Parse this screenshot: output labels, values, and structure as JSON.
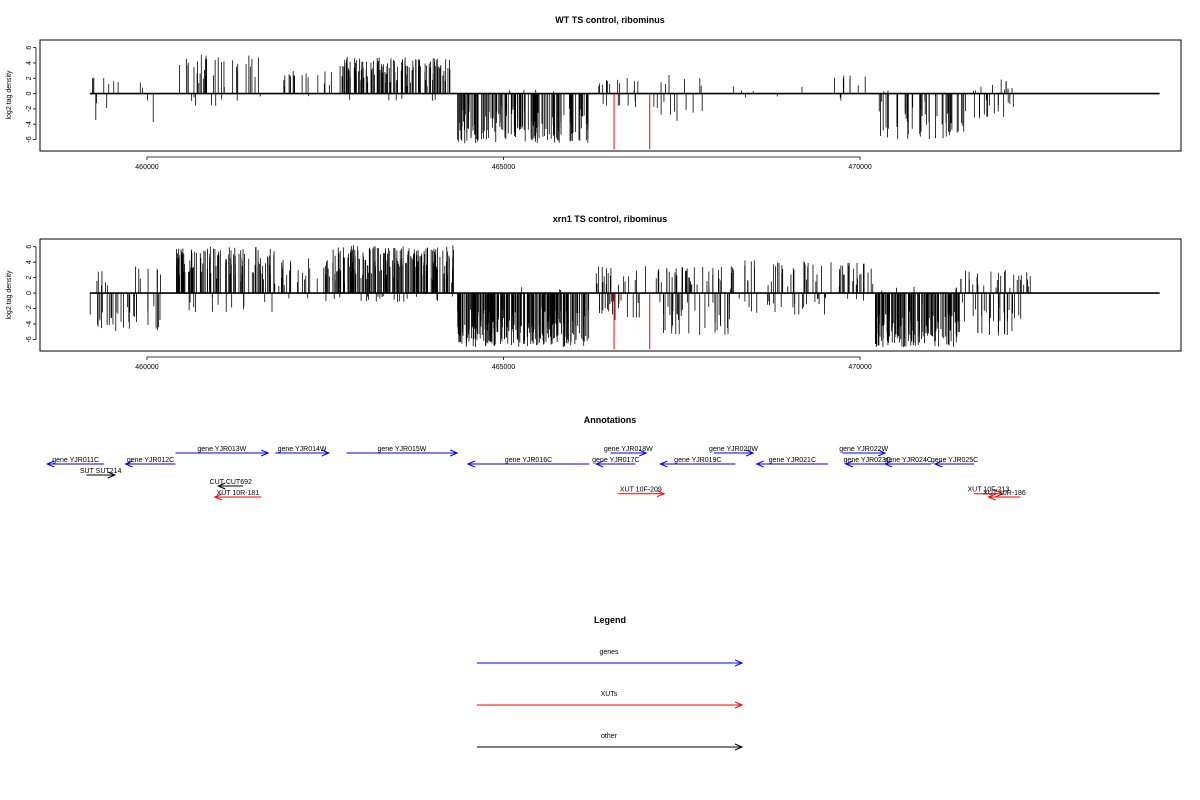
{
  "chart_data": [
    {
      "type": "bar",
      "title": "WT TS control, ribominus",
      "ylabel": "log2 tag density",
      "xlim": [
        458500,
        474500
      ],
      "ylim": [
        -7.5,
        7
      ],
      "x_ticks": [
        460000,
        465000,
        470000
      ],
      "x_tick_labels": [
        "460000",
        "465000",
        "470000"
      ],
      "y_ticks": [
        -6,
        -4,
        -2,
        0,
        2,
        4,
        6
      ],
      "y_tick_labels": [
        "-6",
        "-4",
        "-2",
        "0",
        "2",
        "4",
        "6"
      ],
      "baseline_x_range": [
        459200,
        474200
      ],
      "marker_color": "#ff0000",
      "markers": [
        {
          "x": 466550,
          "y": -7.3
        },
        {
          "x": 467050,
          "y": -7.3
        }
      ],
      "regions": [
        {
          "x": [
            459200,
            460300
          ],
          "n": 14,
          "seed": 11,
          "p_pos": 0.4,
          "pos_max": 2.2,
          "neg_max": 3.8,
          "density": 0.45
        },
        {
          "x": [
            460450,
            461600
          ],
          "n": 40,
          "seed": 12,
          "p_pos": 0.85,
          "pos_max": 5.2,
          "neg_max": 1.6,
          "density": 0.7
        },
        {
          "x": [
            461800,
            462600
          ],
          "n": 18,
          "seed": 13,
          "p_pos": 0.9,
          "pos_max": 3.0,
          "neg_max": 0.8,
          "density": 0.6
        },
        {
          "x": [
            462700,
            464250
          ],
          "n": 130,
          "seed": 14,
          "p_pos": 0.92,
          "pos_max": 4.8,
          "neg_max": 1.0,
          "density": 0.75
        },
        {
          "x": [
            464350,
            466200
          ],
          "n": 170,
          "seed": 15,
          "p_pos": 0.03,
          "pos_max": 0.6,
          "neg_max": 6.5,
          "density": 0.8
        },
        {
          "x": [
            466300,
            466900
          ],
          "n": 20,
          "seed": 16,
          "p_pos": 0.5,
          "pos_max": 2.2,
          "neg_max": 1.8,
          "density": 0.5
        },
        {
          "x": [
            467100,
            468100
          ],
          "n": 16,
          "seed": 17,
          "p_pos": 0.5,
          "pos_max": 2.6,
          "neg_max": 4.2,
          "density": 0.5
        },
        {
          "x": [
            468100,
            469300
          ],
          "n": 6,
          "seed": 18,
          "p_pos": 0.5,
          "pos_max": 1.2,
          "neg_max": 1.4,
          "density": 0.4
        },
        {
          "x": [
            469600,
            470300
          ],
          "n": 10,
          "seed": 19,
          "p_pos": 0.8,
          "pos_max": 2.6,
          "neg_max": 1.0,
          "density": 0.5
        },
        {
          "x": [
            470200,
            471500
          ],
          "n": 50,
          "seed": 20,
          "p_pos": 0.08,
          "pos_max": 0.7,
          "neg_max": 6.0,
          "density": 0.7
        },
        {
          "x": [
            471500,
            472300
          ],
          "n": 26,
          "seed": 21,
          "p_pos": 0.45,
          "pos_max": 2.0,
          "neg_max": 3.5,
          "density": 0.55
        }
      ]
    },
    {
      "type": "bar",
      "title": "xrn1 TS control, ribominus",
      "ylabel": "log2 tag density",
      "xlim": [
        458500,
        474500
      ],
      "ylim": [
        -7.5,
        7
      ],
      "x_ticks": [
        460000,
        465000,
        470000
      ],
      "x_tick_labels": [
        "460000",
        "465000",
        "470000"
      ],
      "y_ticks": [
        -6,
        -4,
        -2,
        0,
        2,
        4,
        6
      ],
      "y_tick_labels": [
        "-6",
        "-4",
        "-2",
        "0",
        "2",
        "4",
        "6"
      ],
      "baseline_x_range": [
        459200,
        474200
      ],
      "marker_color": "#ff0000",
      "markers": [
        {
          "x": 466550,
          "y": -7.3
        },
        {
          "x": 467050,
          "y": -7.3
        }
      ],
      "regions": [
        {
          "x": [
            459200,
            460200
          ],
          "n": 45,
          "seed": 31,
          "p_pos": 0.3,
          "pos_max": 3.5,
          "neg_max": 5.0,
          "density": 0.65
        },
        {
          "x": [
            460400,
            461800
          ],
          "n": 120,
          "seed": 32,
          "p_pos": 0.85,
          "pos_max": 6.0,
          "neg_max": 2.5,
          "density": 0.75
        },
        {
          "x": [
            461800,
            462600
          ],
          "n": 30,
          "seed": 33,
          "p_pos": 0.8,
          "pos_max": 4.5,
          "neg_max": 1.2,
          "density": 0.6
        },
        {
          "x": [
            462600,
            464300
          ],
          "n": 200,
          "seed": 34,
          "p_pos": 0.9,
          "pos_max": 6.2,
          "neg_max": 1.2,
          "density": 0.8
        },
        {
          "x": [
            464350,
            466200
          ],
          "n": 260,
          "seed": 35,
          "p_pos": 0.02,
          "pos_max": 0.8,
          "neg_max": 7.0,
          "density": 0.8
        },
        {
          "x": [
            466300,
            467000
          ],
          "n": 40,
          "seed": 36,
          "p_pos": 0.5,
          "pos_max": 3.5,
          "neg_max": 3.5,
          "density": 0.6
        },
        {
          "x": [
            467100,
            468200
          ],
          "n": 80,
          "seed": 37,
          "p_pos": 0.55,
          "pos_max": 3.5,
          "neg_max": 5.5,
          "density": 0.65
        },
        {
          "x": [
            468200,
            469600
          ],
          "n": 60,
          "seed": 38,
          "p_pos": 0.55,
          "pos_max": 4.5,
          "neg_max": 2.8,
          "density": 0.6
        },
        {
          "x": [
            469700,
            470200
          ],
          "n": 25,
          "seed": 39,
          "p_pos": 0.8,
          "pos_max": 4.0,
          "neg_max": 1.0,
          "density": 0.6
        },
        {
          "x": [
            470200,
            471400
          ],
          "n": 150,
          "seed": 40,
          "p_pos": 0.03,
          "pos_max": 0.8,
          "neg_max": 7.0,
          "density": 0.75
        },
        {
          "x": [
            471400,
            472400
          ],
          "n": 60,
          "seed": 41,
          "p_pos": 0.45,
          "pos_max": 3.0,
          "neg_max": 5.5,
          "density": 0.65
        }
      ]
    }
  ],
  "annotations": {
    "title": "Annotations",
    "blue": "#0000ff",
    "red": "#ff0000",
    "black": "#000000",
    "items": [
      {
        "label": "gene YJR011C",
        "x1": 458600,
        "x2": 459400,
        "dir": "left",
        "row": 1,
        "color": "blue"
      },
      {
        "label": "gene YJR012C",
        "x1": 459700,
        "x2": 460400,
        "dir": "left",
        "row": 1,
        "color": "blue"
      },
      {
        "label": "gene YJR013W",
        "x1": 460400,
        "x2": 461700,
        "dir": "right",
        "row": 0,
        "color": "blue"
      },
      {
        "label": "gene YJR014W",
        "x1": 461800,
        "x2": 462550,
        "dir": "right",
        "row": 0,
        "color": "blue"
      },
      {
        "label": "gene YJR015W",
        "x1": 462800,
        "x2": 464350,
        "dir": "right",
        "row": 0,
        "color": "blue"
      },
      {
        "label": "gene YJR016C",
        "x1": 464500,
        "x2": 466200,
        "dir": "left",
        "row": 1,
        "color": "blue"
      },
      {
        "label": "gene YJR017C",
        "x1": 466300,
        "x2": 466850,
        "dir": "left",
        "row": 1,
        "color": "blue"
      },
      {
        "label": "gene YJR018W",
        "x1": 466500,
        "x2": 467000,
        "dir": "right",
        "row": 0,
        "color": "blue"
      },
      {
        "label": "gene YJR019C",
        "x1": 467200,
        "x2": 468250,
        "dir": "left",
        "row": 1,
        "color": "blue"
      },
      {
        "label": "gene YJR020W",
        "x1": 467950,
        "x2": 468500,
        "dir": "right",
        "row": 0,
        "color": "blue"
      },
      {
        "label": "gene YJR021C",
        "x1": 468550,
        "x2": 469550,
        "dir": "left",
        "row": 1,
        "color": "blue"
      },
      {
        "label": "gene YJR022W",
        "x1": 469750,
        "x2": 470350,
        "dir": "right",
        "row": 0,
        "color": "blue"
      },
      {
        "label": "gene YJR023C",
        "x1": 469800,
        "x2": 470400,
        "dir": "left",
        "row": 1,
        "color": "blue"
      },
      {
        "label": "gene YJR024C",
        "x1": 470350,
        "x2": 471000,
        "dir": "left",
        "row": 1,
        "color": "blue"
      },
      {
        "label": "gene YJR025C",
        "x1": 471050,
        "x2": 471600,
        "dir": "left",
        "row": 1,
        "color": "blue"
      },
      {
        "label": "SUT SUT214",
        "x1": 459150,
        "x2": 459550,
        "dir": "right",
        "row": 2,
        "color": "black"
      },
      {
        "label": "CUT CUT692",
        "x1": 461000,
        "x2": 461350,
        "dir": "left",
        "row": 3,
        "color": "black"
      },
      {
        "label": "XUT 10R-181",
        "x1": 460950,
        "x2": 461600,
        "dir": "left",
        "row": 4,
        "color": "red"
      },
      {
        "label": "XUT 10F-209",
        "x1": 466600,
        "x2": 467250,
        "dir": "right",
        "row": 3.7,
        "color": "red"
      },
      {
        "label": "XUT 10F-213",
        "x1": 471600,
        "x2": 472000,
        "dir": "right",
        "row": 3.7,
        "color": "red"
      },
      {
        "label": "XUT 10R-186",
        "x1": 471800,
        "x2": 472250,
        "dir": "left",
        "row": 4,
        "color": "red"
      }
    ]
  },
  "legend": {
    "title": "Legend",
    "items": [
      {
        "label": "genes",
        "color": "#0000ff"
      },
      {
        "label": "XUTs",
        "color": "#ff0000"
      },
      {
        "label": "other",
        "color": "#000000"
      }
    ]
  }
}
